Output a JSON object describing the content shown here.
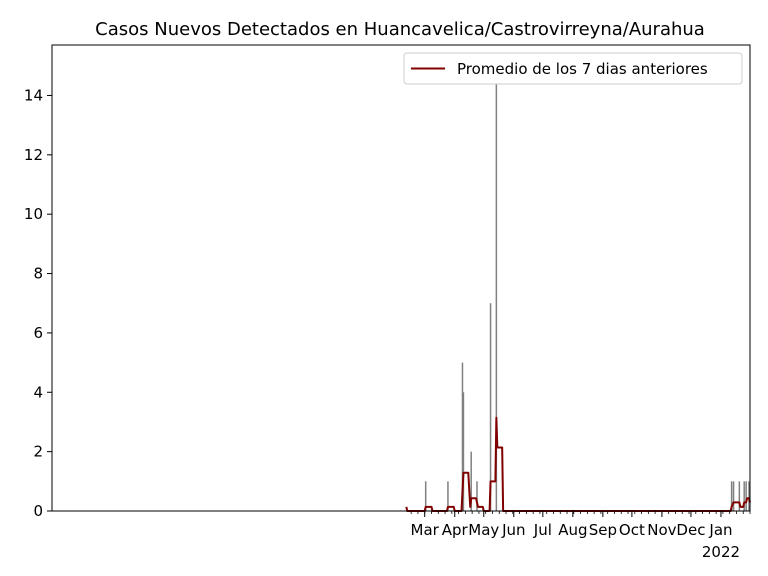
{
  "chart_data": {
    "type": "bar+line",
    "title": "Casos Nuevos Detectados en Huancavelica/Castrovirreyna/Aurahua",
    "xlabel": "",
    "ylabel": "",
    "ylim": [
      0,
      15.7
    ],
    "xlim": [
      "2020-02-10",
      "2022-01-31"
    ],
    "yticks": [
      0,
      2,
      4,
      6,
      8,
      10,
      12,
      14
    ],
    "xtick_labels": [
      {
        "date": "2021-03-01",
        "label": "Mar"
      },
      {
        "date": "2021-04-01",
        "label": "Apr"
      },
      {
        "date": "2021-05-01",
        "label": "May"
      },
      {
        "date": "2021-06-01",
        "label": "Jun"
      },
      {
        "date": "2021-07-01",
        "label": "Jul"
      },
      {
        "date": "2021-08-01",
        "label": "Aug"
      },
      {
        "date": "2021-09-01",
        "label": "Sep"
      },
      {
        "date": "2021-10-01",
        "label": "Oct"
      },
      {
        "date": "2021-11-01",
        "label": "Nov"
      },
      {
        "date": "2021-12-01",
        "label": "Dec"
      },
      {
        "date": "2022-01-01",
        "label": "Jan",
        "sublabel": "2022"
      }
    ],
    "grid": false,
    "legend": {
      "placement": "top-right",
      "entries": [
        "Promedio de los 7 dias anteriores"
      ]
    },
    "colors": {
      "bars": "#808080",
      "line": "#800000"
    },
    "bars": [
      {
        "date": "2021-03-02",
        "value": 1
      },
      {
        "date": "2021-03-25",
        "value": 1
      },
      {
        "date": "2021-04-09",
        "value": 5
      },
      {
        "date": "2021-04-10",
        "value": 4
      },
      {
        "date": "2021-04-18",
        "value": 2
      },
      {
        "date": "2021-04-24",
        "value": 1
      },
      {
        "date": "2021-05-08",
        "value": 7
      },
      {
        "date": "2021-05-14",
        "value": 15
      },
      {
        "date": "2022-01-12",
        "value": 1
      },
      {
        "date": "2022-01-14",
        "value": 1
      },
      {
        "date": "2022-01-20",
        "value": 1
      },
      {
        "date": "2022-01-25",
        "value": 1
      },
      {
        "date": "2022-01-27",
        "value": 1
      },
      {
        "date": "2022-01-30",
        "value": 1
      }
    ],
    "series": [
      {
        "name": "Promedio de los 7 dias anteriores",
        "points": [
          {
            "date": "2021-02-10",
            "value": 0.14
          },
          {
            "date": "2021-02-11",
            "value": 0
          },
          {
            "date": "2021-03-01",
            "value": 0
          },
          {
            "date": "2021-03-02",
            "value": 0.14
          },
          {
            "date": "2021-03-08",
            "value": 0.14
          },
          {
            "date": "2021-03-09",
            "value": 0
          },
          {
            "date": "2021-03-24",
            "value": 0
          },
          {
            "date": "2021-03-25",
            "value": 0.14
          },
          {
            "date": "2021-03-31",
            "value": 0.14
          },
          {
            "date": "2021-04-01",
            "value": 0
          },
          {
            "date": "2021-04-08",
            "value": 0
          },
          {
            "date": "2021-04-10",
            "value": 1.29
          },
          {
            "date": "2021-04-15",
            "value": 1.29
          },
          {
            "date": "2021-04-17",
            "value": 0.14
          },
          {
            "date": "2021-04-18",
            "value": 0.43
          },
          {
            "date": "2021-04-23",
            "value": 0.43
          },
          {
            "date": "2021-04-24",
            "value": 0.29
          },
          {
            "date": "2021-04-25",
            "value": 0.14
          },
          {
            "date": "2021-04-30",
            "value": 0.14
          },
          {
            "date": "2021-05-01",
            "value": 0
          },
          {
            "date": "2021-05-07",
            "value": 0
          },
          {
            "date": "2021-05-08",
            "value": 1
          },
          {
            "date": "2021-05-13",
            "value": 1
          },
          {
            "date": "2021-05-14",
            "value": 3.14
          },
          {
            "date": "2021-05-15",
            "value": 2.14
          },
          {
            "date": "2021-05-20",
            "value": 2.14
          },
          {
            "date": "2021-05-21",
            "value": 0
          },
          {
            "date": "2022-01-11",
            "value": 0
          },
          {
            "date": "2022-01-12",
            "value": 0.14
          },
          {
            "date": "2022-01-14",
            "value": 0.29
          },
          {
            "date": "2022-01-19",
            "value": 0.29
          },
          {
            "date": "2022-01-20",
            "value": 0.29
          },
          {
            "date": "2022-01-21",
            "value": 0.14
          },
          {
            "date": "2022-01-24",
            "value": 0.14
          },
          {
            "date": "2022-01-25",
            "value": 0.29
          },
          {
            "date": "2022-01-27",
            "value": 0.29
          },
          {
            "date": "2022-01-28",
            "value": 0.43
          },
          {
            "date": "2022-01-30",
            "value": 0.43
          },
          {
            "date": "2022-01-31",
            "value": 0.29
          }
        ]
      }
    ]
  }
}
